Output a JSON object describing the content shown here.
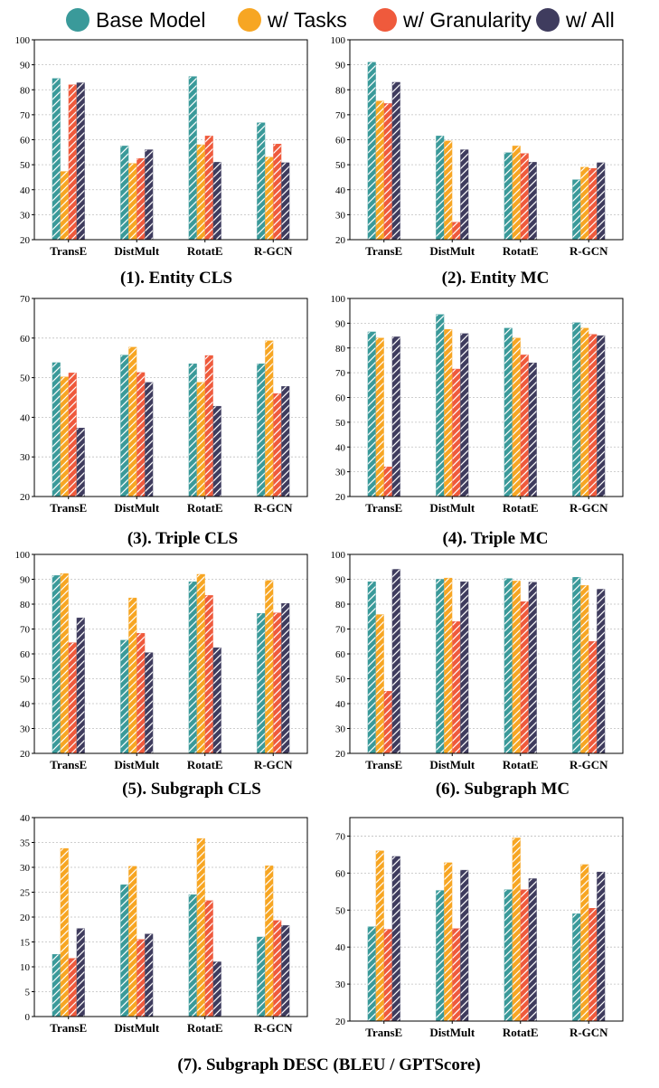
{
  "legend": [
    {
      "name": "Base Model",
      "color": "#3a9a9a"
    },
    {
      "name": "w/ Tasks",
      "color": "#f7a623"
    },
    {
      "name": "w/ Granularity",
      "color": "#ef5a3c"
    },
    {
      "name": "w/ All",
      "color": "#3f3c5e"
    }
  ],
  "chart_data": [
    {
      "type": "bar",
      "title": "(1). Entity CLS",
      "categories": [
        "TransE",
        "DistMult",
        "RotatE",
        "R-GCN"
      ],
      "ylim": [
        20,
        100
      ],
      "yticks": [
        20,
        30,
        40,
        50,
        60,
        70,
        80,
        90,
        100
      ],
      "series": [
        {
          "name": "Base Model",
          "values": [
            84.5,
            57.5,
            85.3,
            66.8
          ]
        },
        {
          "name": "w/ Tasks",
          "values": [
            47.3,
            50.5,
            58.0,
            53.0
          ]
        },
        {
          "name": "w/ Granularity",
          "values": [
            82.0,
            52.5,
            61.5,
            58.3
          ]
        },
        {
          "name": "w/ All",
          "values": [
            82.8,
            56.0,
            51.0,
            50.8
          ]
        }
      ]
    },
    {
      "type": "bar",
      "title": "(2). Entity MC",
      "categories": [
        "TransE",
        "DistMult",
        "RotatE",
        "R-GCN"
      ],
      "ylim": [
        20,
        100
      ],
      "yticks": [
        20,
        30,
        40,
        50,
        60,
        70,
        80,
        90,
        100
      ],
      "series": [
        {
          "name": "Base Model",
          "values": [
            91.0,
            61.5,
            54.8,
            44.0
          ]
        },
        {
          "name": "w/ Tasks",
          "values": [
            75.5,
            59.5,
            57.5,
            49.0
          ]
        },
        {
          "name": "w/ Granularity",
          "values": [
            74.5,
            27.0,
            54.5,
            48.5
          ]
        },
        {
          "name": "w/ All",
          "values": [
            83.0,
            56.0,
            51.0,
            50.8
          ]
        }
      ]
    },
    {
      "type": "bar",
      "title": "(3). Triple CLS",
      "categories": [
        "TransE",
        "DistMult",
        "RotatE",
        "R-GCN"
      ],
      "ylim": [
        20,
        70
      ],
      "yticks": [
        20,
        30,
        40,
        50,
        60,
        70
      ],
      "series": [
        {
          "name": "Base Model",
          "values": [
            53.8,
            55.7,
            53.5,
            53.5
          ]
        },
        {
          "name": "w/ Tasks",
          "values": [
            50.2,
            57.7,
            48.8,
            59.3
          ]
        },
        {
          "name": "w/ Granularity",
          "values": [
            51.2,
            51.3,
            55.6,
            46.0
          ]
        },
        {
          "name": "w/ All",
          "values": [
            37.3,
            48.8,
            42.8,
            47.8
          ]
        }
      ]
    },
    {
      "type": "bar",
      "title": "(4). Triple MC",
      "categories": [
        "TransE",
        "DistMult",
        "RotatE",
        "R-GCN"
      ],
      "ylim": [
        20,
        100
      ],
      "yticks": [
        20,
        30,
        40,
        50,
        60,
        70,
        80,
        90,
        100
      ],
      "series": [
        {
          "name": "Base Model",
          "values": [
            86.5,
            93.5,
            88.0,
            90.2
          ]
        },
        {
          "name": "w/ Tasks",
          "values": [
            84.0,
            87.5,
            84.0,
            88.0
          ]
        },
        {
          "name": "w/ Granularity",
          "values": [
            32.0,
            71.5,
            77.2,
            85.5
          ]
        },
        {
          "name": "w/ All",
          "values": [
            84.5,
            85.8,
            74.0,
            85.0
          ]
        }
      ]
    },
    {
      "type": "bar",
      "title": "(5). Subgraph CLS",
      "categories": [
        "TransE",
        "DistMult",
        "RotatE",
        "R-GCN"
      ],
      "ylim": [
        20,
        100
      ],
      "yticks": [
        20,
        30,
        40,
        50,
        60,
        70,
        80,
        90,
        100
      ],
      "series": [
        {
          "name": "Base Model",
          "values": [
            91.5,
            65.5,
            89.0,
            76.3
          ]
        },
        {
          "name": "w/ Tasks",
          "values": [
            92.3,
            82.5,
            92.0,
            89.5
          ]
        },
        {
          "name": "w/ Granularity",
          "values": [
            64.5,
            68.3,
            83.5,
            76.5
          ]
        },
        {
          "name": "w/ All",
          "values": [
            74.5,
            60.5,
            62.5,
            80.3
          ]
        }
      ]
    },
    {
      "type": "bar",
      "title": "(6). Subgraph MC",
      "categories": [
        "TransE",
        "DistMult",
        "RotatE",
        "R-GCN"
      ],
      "ylim": [
        20,
        100
      ],
      "yticks": [
        20,
        30,
        40,
        50,
        60,
        70,
        80,
        90,
        100
      ],
      "series": [
        {
          "name": "Base Model",
          "values": [
            89.0,
            90.0,
            90.3,
            90.8
          ]
        },
        {
          "name": "w/ Tasks",
          "values": [
            75.8,
            90.5,
            89.3,
            87.5
          ]
        },
        {
          "name": "w/ Granularity",
          "values": [
            45.0,
            73.0,
            81.0,
            65.0
          ]
        },
        {
          "name": "w/ All",
          "values": [
            94.0,
            89.0,
            88.8,
            86.0
          ]
        }
      ]
    },
    {
      "type": "bar",
      "title": "",
      "categories": [
        "TransE",
        "DistMult",
        "RotatE",
        "R-GCN"
      ],
      "ylim": [
        0,
        40
      ],
      "yticks": [
        0,
        5,
        10,
        15,
        20,
        25,
        30,
        35,
        40
      ],
      "series": [
        {
          "name": "Base Model",
          "values": [
            12.5,
            26.5,
            24.5,
            16.0
          ]
        },
        {
          "name": "w/ Tasks",
          "values": [
            33.8,
            30.2,
            35.8,
            30.3
          ]
        },
        {
          "name": "w/ Granularity",
          "values": [
            11.7,
            15.5,
            23.3,
            19.3
          ]
        },
        {
          "name": "w/ All",
          "values": [
            17.7,
            16.6,
            11.0,
            18.3
          ]
        }
      ]
    },
    {
      "type": "bar",
      "title": "",
      "categories": [
        "TransE",
        "DistMult",
        "RotatE",
        "R-GCN"
      ],
      "ylim": [
        20,
        75
      ],
      "yticks": [
        20,
        30,
        40,
        50,
        60,
        70
      ],
      "series": [
        {
          "name": "Base Model",
          "values": [
            45.5,
            55.3,
            55.5,
            49.0
          ]
        },
        {
          "name": "w/ Tasks",
          "values": [
            66.0,
            62.8,
            69.5,
            62.3
          ]
        },
        {
          "name": "w/ Granularity",
          "values": [
            44.8,
            45.0,
            55.5,
            50.5
          ]
        },
        {
          "name": "w/ All",
          "values": [
            64.5,
            60.8,
            58.5,
            60.3
          ]
        }
      ]
    }
  ],
  "footer_title": "(7). Subgraph DESC (BLEU / GPTScore)"
}
